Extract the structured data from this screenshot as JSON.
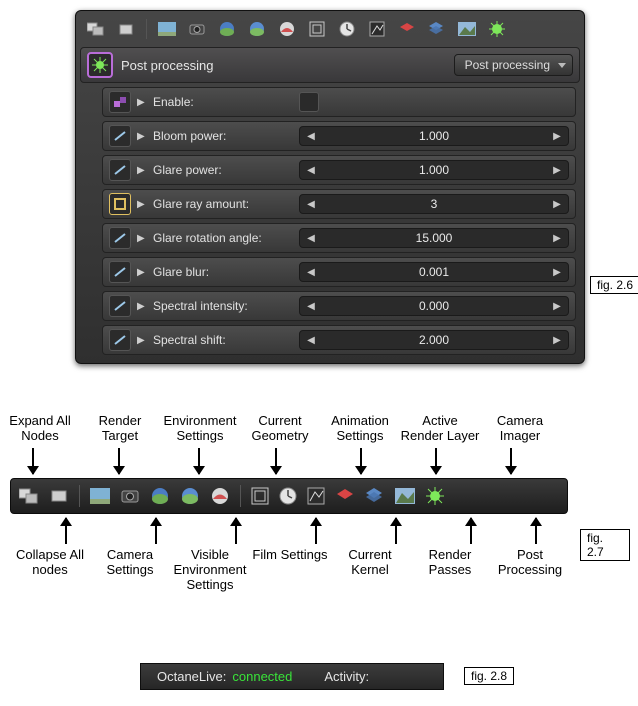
{
  "panel": {
    "title": "Post processing",
    "dropdown": "Post processing",
    "rows": [
      {
        "type": "bool",
        "label": "Enable:"
      },
      {
        "type": "float",
        "label": "Bloom power:",
        "value": "1.000"
      },
      {
        "type": "float",
        "label": "Glare power:",
        "value": "1.000"
      },
      {
        "type": "int",
        "label": "Glare ray amount:",
        "value": "3",
        "icon_color": "#e0c060"
      },
      {
        "type": "float",
        "label": "Glare rotation angle:",
        "value": "15.000"
      },
      {
        "type": "float",
        "label": "Glare blur:",
        "value": "0.001"
      },
      {
        "type": "float",
        "label": "Spectral intensity:",
        "value": "0.000"
      },
      {
        "type": "float",
        "label": "Spectral shift:",
        "value": "2.000"
      }
    ]
  },
  "fig_labels": {
    "f26": "fig. 2.6",
    "f27": "fig. 2.7",
    "f28": "fig. 2.8"
  },
  "toolbar27": {
    "top_labels": [
      "Expand All Nodes",
      "Render Target",
      "Environment Settings",
      "Current Geometry",
      "Animation Settings",
      "Active Render Layer",
      "Camera Imager"
    ],
    "bottom_labels": [
      "Collapse All nodes",
      "Camera Settings",
      "Visible Environment Settings",
      "Film Settings",
      "Current Kernel",
      "Render Passes",
      "Post Processing"
    ]
  },
  "status": {
    "label1": "OctaneLive:",
    "value1": "connected",
    "label2": "Activity:"
  },
  "colors": {
    "accent_purple": "#b96dd8",
    "panel_bg": "#3a3a3a",
    "connected": "#39e339"
  }
}
